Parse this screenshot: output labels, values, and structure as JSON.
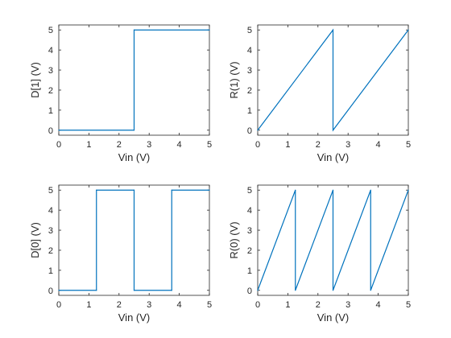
{
  "chart_data": [
    {
      "type": "line",
      "xlabel": "Vin (V)",
      "ylabel": "D[1] (V)",
      "xlim": [
        0,
        5
      ],
      "ylim": [
        -0.25,
        5.25
      ],
      "xticks": [
        "0",
        "1",
        "2",
        "3",
        "4",
        "5"
      ],
      "yticks": [
        "0",
        "1",
        "2",
        "3",
        "4",
        "5"
      ],
      "grid": false,
      "line_color": "#0072BD",
      "series": [
        {
          "points": [
            [
              0,
              0
            ],
            [
              2.5,
              0
            ],
            [
              2.5,
              5
            ],
            [
              5,
              5
            ]
          ]
        }
      ]
    },
    {
      "type": "line",
      "xlabel": "Vin (V)",
      "ylabel": "R(1) (V)",
      "xlim": [
        0,
        5
      ],
      "ylim": [
        -0.25,
        5.25
      ],
      "xticks": [
        "0",
        "1",
        "2",
        "3",
        "4",
        "5"
      ],
      "yticks": [
        "0",
        "1",
        "2",
        "3",
        "4",
        "5"
      ],
      "grid": false,
      "line_color": "#0072BD",
      "series": [
        {
          "points": [
            [
              0,
              0
            ],
            [
              2.5,
              5
            ],
            [
              2.5,
              0
            ],
            [
              5,
              5
            ]
          ]
        }
      ]
    },
    {
      "type": "line",
      "xlabel": "Vin (V)",
      "ylabel": "D[0] (V)",
      "xlim": [
        0,
        5
      ],
      "ylim": [
        -0.25,
        5.25
      ],
      "xticks": [
        "0",
        "1",
        "2",
        "3",
        "4",
        "5"
      ],
      "yticks": [
        "0",
        "1",
        "2",
        "3",
        "4",
        "5"
      ],
      "grid": false,
      "line_color": "#0072BD",
      "series": [
        {
          "points": [
            [
              0,
              0
            ],
            [
              1.25,
              0
            ],
            [
              1.25,
              5
            ],
            [
              2.5,
              5
            ],
            [
              2.5,
              0
            ],
            [
              3.75,
              0
            ],
            [
              3.75,
              5
            ],
            [
              5,
              5
            ]
          ]
        }
      ]
    },
    {
      "type": "line",
      "xlabel": "Vin (V)",
      "ylabel": "R(0) (V)",
      "xlim": [
        0,
        5
      ],
      "ylim": [
        -0.25,
        5.25
      ],
      "xticks": [
        "0",
        "1",
        "2",
        "3",
        "4",
        "5"
      ],
      "yticks": [
        "0",
        "1",
        "2",
        "3",
        "4",
        "5"
      ],
      "grid": false,
      "line_color": "#0072BD",
      "series": [
        {
          "points": [
            [
              0,
              0
            ],
            [
              1.25,
              5
            ],
            [
              1.25,
              0
            ],
            [
              2.5,
              5
            ],
            [
              2.5,
              0
            ],
            [
              3.75,
              5
            ],
            [
              3.75,
              0
            ],
            [
              5,
              5
            ]
          ]
        }
      ]
    }
  ]
}
